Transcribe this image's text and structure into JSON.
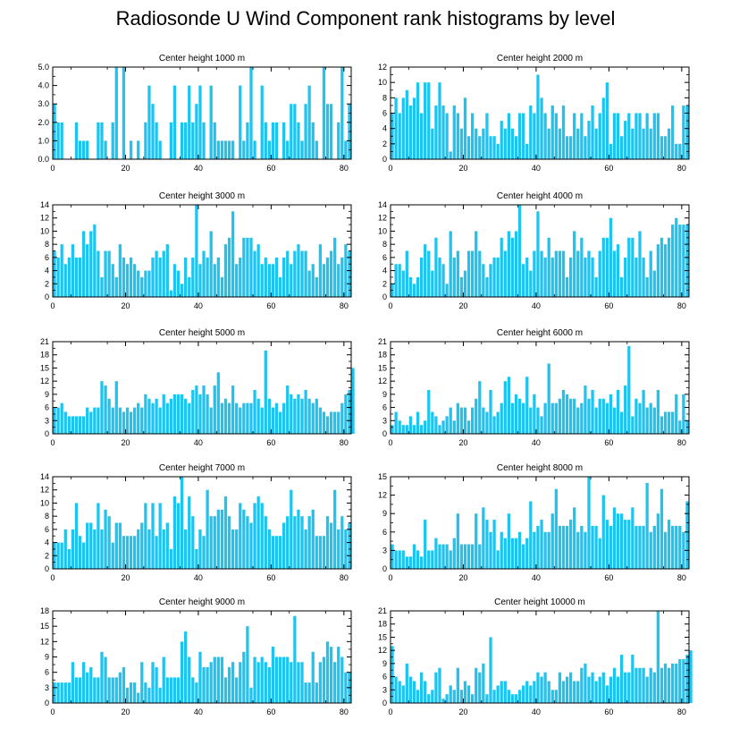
{
  "title": "Radiosonde U Wind Component rank histograms by level",
  "bar_color": "#1ec4f0",
  "chart_data": [
    {
      "type": "bar",
      "title": "Center height 1000 m",
      "xticks": [
        0,
        20,
        40,
        60,
        80
      ],
      "yticks": [
        "0.0",
        "1.0",
        "2.0",
        "3.0",
        "4.0",
        "5.0"
      ],
      "ylim": [
        0,
        5
      ],
      "xlim": [
        0,
        82
      ],
      "values": [
        3,
        2,
        2,
        0,
        0,
        0,
        2,
        1,
        1,
        1,
        0,
        0,
        2,
        2,
        1,
        0,
        2,
        5,
        0,
        5,
        0,
        1,
        0,
        1,
        0,
        2,
        4,
        3,
        2,
        1,
        0,
        0,
        2,
        4,
        0,
        2,
        2,
        4,
        2,
        3,
        4,
        2,
        0,
        4,
        2,
        1,
        1,
        1,
        1,
        1,
        0,
        4,
        1,
        2,
        5,
        1,
        0,
        4,
        2,
        1,
        2,
        2,
        0,
        2,
        1,
        3,
        3,
        2,
        1,
        3,
        4,
        2,
        1,
        0,
        5,
        3,
        3,
        0,
        2,
        5,
        1,
        3
      ]
    },
    {
      "type": "bar",
      "title": "Center height 2000 m",
      "xticks": [
        0,
        20,
        40,
        60,
        80
      ],
      "yticks": [
        "0",
        "2",
        "4",
        "6",
        "8",
        "10",
        "12"
      ],
      "ylim": [
        0,
        12
      ],
      "xlim": [
        0,
        82
      ],
      "values": [
        6,
        8,
        6,
        8,
        9,
        7,
        8,
        10,
        6,
        10,
        10,
        4,
        7,
        10,
        7,
        6,
        1,
        7,
        6,
        4,
        8,
        3,
        6,
        4,
        3,
        4,
        6,
        3,
        3,
        2,
        5,
        4,
        6,
        4,
        3,
        6,
        6,
        2,
        7,
        6,
        11,
        8,
        6,
        4,
        7,
        6,
        4,
        7,
        3,
        3,
        6,
        4,
        6,
        3,
        5,
        7,
        4,
        6,
        8,
        10,
        2,
        6,
        6,
        3,
        5,
        6,
        4,
        6,
        6,
        4,
        6,
        4,
        6,
        6,
        3,
        3,
        4,
        7,
        2,
        2,
        7,
        7
      ]
    },
    {
      "type": "bar",
      "title": "Center height 3000 m",
      "xticks": [
        0,
        20,
        40,
        60,
        80
      ],
      "yticks": [
        "0",
        "2",
        "4",
        "6",
        "8",
        "10",
        "12",
        "14"
      ],
      "ylim": [
        0,
        14
      ],
      "xlim": [
        0,
        82
      ],
      "values": [
        7,
        6,
        8,
        5,
        6,
        8,
        6,
        6,
        10,
        8,
        10,
        11,
        7,
        3,
        7,
        7,
        5,
        3,
        8,
        6,
        5,
        6,
        5,
        4,
        3,
        4,
        4,
        6,
        7,
        6,
        7,
        8,
        1,
        5,
        4,
        2,
        6,
        3,
        6,
        14,
        5,
        7,
        6,
        10,
        5,
        6,
        3,
        8,
        9,
        13,
        5,
        6,
        9,
        9,
        9,
        7,
        8,
        5,
        6,
        5,
        5,
        6,
        3,
        6,
        7,
        5,
        7,
        8,
        7,
        7,
        4,
        5,
        3,
        8,
        5,
        6,
        7,
        9,
        5,
        6,
        8,
        7
      ]
    },
    {
      "type": "bar",
      "title": "Center height 4000 m",
      "xticks": [
        0,
        20,
        40,
        60,
        80
      ],
      "yticks": [
        "0",
        "2",
        "4",
        "6",
        "8",
        "10",
        "12",
        "14"
      ],
      "ylim": [
        0,
        14
      ],
      "xlim": [
        0,
        82
      ],
      "values": [
        2,
        5,
        5,
        4,
        7,
        3,
        2,
        3,
        6,
        8,
        7,
        4,
        9,
        6,
        5,
        2,
        10,
        6,
        7,
        3,
        4,
        7,
        7,
        10,
        7,
        5,
        3,
        5,
        6,
        6,
        9,
        7,
        10,
        9,
        10,
        14,
        5,
        6,
        4,
        7,
        13,
        7,
        6,
        9,
        6,
        7,
        7,
        7,
        3,
        6,
        10,
        7,
        9,
        6,
        7,
        6,
        3,
        7,
        9,
        9,
        12,
        7,
        8,
        3,
        6,
        9,
        9,
        6,
        10,
        6,
        3,
        7,
        4,
        8,
        9,
        8,
        9,
        11,
        12,
        11,
        11,
        11
      ]
    },
    {
      "type": "bar",
      "title": "Center height 5000 m",
      "xticks": [
        0,
        20,
        40,
        60,
        80
      ],
      "yticks": [
        "0",
        "3",
        "6",
        "9",
        "12",
        "15",
        "18",
        "21"
      ],
      "ylim": [
        0,
        21
      ],
      "xlim": [
        0,
        82
      ],
      "values": [
        6,
        6,
        7,
        5,
        4,
        4,
        4,
        4,
        4,
        6,
        5,
        6,
        6,
        12,
        11,
        8,
        6,
        12,
        6,
        5,
        6,
        5,
        6,
        7,
        6,
        9,
        8,
        7,
        8,
        6,
        9,
        7,
        8,
        9,
        9,
        9,
        8,
        7,
        10,
        11,
        9,
        11,
        9,
        6,
        11,
        14,
        7,
        8,
        7,
        11,
        7,
        6,
        7,
        7,
        7,
        10,
        8,
        6,
        19,
        8,
        6,
        7,
        5,
        7,
        11,
        9,
        8,
        9,
        8,
        10,
        8,
        7,
        8,
        6,
        5,
        4,
        5,
        5,
        5,
        7,
        9,
        10,
        15
      ]
    },
    {
      "type": "bar",
      "title": "Center height 6000 m",
      "xticks": [
        0,
        20,
        40,
        60,
        80
      ],
      "yticks": [
        "0",
        "3",
        "6",
        "9",
        "12",
        "15",
        "18",
        "21"
      ],
      "ylim": [
        0,
        21
      ],
      "xlim": [
        0,
        82
      ],
      "values": [
        2,
        5,
        3,
        2,
        2,
        4,
        2,
        5,
        2,
        3,
        10,
        5,
        4,
        2,
        3,
        4,
        6,
        3,
        7,
        6,
        6,
        3,
        6,
        8,
        12,
        6,
        5,
        10,
        4,
        5,
        7,
        12,
        13,
        7,
        9,
        8,
        7,
        13,
        6,
        9,
        6,
        4,
        7,
        16,
        7,
        7,
        8,
        10,
        9,
        8,
        8,
        6,
        7,
        11,
        8,
        10,
        6,
        8,
        8,
        7,
        9,
        6,
        10,
        5,
        11,
        20,
        4,
        8,
        7,
        10,
        6,
        7,
        6,
        10,
        4,
        5,
        5,
        5,
        9,
        3,
        9,
        3
      ]
    },
    {
      "type": "bar",
      "title": "Center height 7000 m",
      "xticks": [
        0,
        20,
        40,
        60,
        80
      ],
      "yticks": [
        "0",
        "2",
        "4",
        "6",
        "8",
        "10",
        "12",
        "14"
      ],
      "ylim": [
        0,
        14
      ],
      "xlim": [
        0,
        82
      ],
      "values": [
        4,
        4,
        4,
        6,
        3,
        6,
        10,
        5,
        4,
        7,
        7,
        6,
        10,
        6,
        9,
        8,
        4,
        7,
        7,
        5,
        5,
        5,
        5,
        6,
        7,
        10,
        6,
        10,
        5,
        10,
        6,
        7,
        3,
        11,
        10,
        14,
        6,
        11,
        8,
        3,
        6,
        5,
        12,
        8,
        8,
        9,
        9,
        11,
        8,
        6,
        6,
        10,
        9,
        8,
        7,
        10,
        11,
        10,
        8,
        6,
        5,
        5,
        5,
        7,
        8,
        12,
        8,
        9,
        8,
        6,
        8,
        9,
        5,
        5,
        5,
        8,
        7,
        12,
        6,
        8,
        6,
        7
      ]
    },
    {
      "type": "bar",
      "title": "Center height 8000 m",
      "xticks": [
        0,
        20,
        40,
        60,
        80
      ],
      "yticks": [
        "0",
        "3",
        "6",
        "9",
        "12",
        "15"
      ],
      "ylim": [
        0,
        15
      ],
      "xlim": [
        0,
        82
      ],
      "values": [
        4,
        3,
        3,
        3,
        2,
        2,
        4,
        3,
        2,
        8,
        3,
        3,
        5,
        4,
        4,
        4,
        3,
        5,
        9,
        4,
        4,
        4,
        4,
        9,
        4,
        10,
        8,
        6,
        8,
        3,
        6,
        5,
        9,
        5,
        5,
        6,
        4,
        5,
        11,
        6,
        7,
        8,
        6,
        6,
        9,
        13,
        7,
        7,
        7,
        8,
        10,
        6,
        7,
        6,
        15,
        7,
        7,
        5,
        12,
        8,
        7,
        10,
        9,
        9,
        8,
        8,
        10,
        7,
        7,
        7,
        14,
        6,
        7,
        9,
        13,
        6,
        8,
        7,
        7,
        7,
        6,
        11
      ]
    },
    {
      "type": "bar",
      "title": "Center height 9000 m",
      "xticks": [
        0,
        20,
        40,
        60,
        80
      ],
      "yticks": [
        "0",
        "3",
        "6",
        "9",
        "12",
        "15",
        "18"
      ],
      "ylim": [
        0,
        18
      ],
      "xlim": [
        0,
        82
      ],
      "values": [
        4,
        4,
        4,
        4,
        4,
        8,
        5,
        5,
        8,
        6,
        7,
        5,
        5,
        10,
        9,
        5,
        5,
        5,
        6,
        7,
        3,
        4,
        4,
        2,
        8,
        4,
        3,
        8,
        7,
        3,
        9,
        5,
        5,
        5,
        5,
        12,
        14,
        9,
        5,
        4,
        10,
        7,
        7,
        8,
        9,
        9,
        9,
        5,
        7,
        8,
        5,
        8,
        10,
        15,
        3,
        9,
        8,
        9,
        8,
        7,
        11,
        9,
        9,
        9,
        9,
        8,
        17,
        8,
        8,
        4,
        4,
        10,
        4,
        8,
        9,
        12,
        11,
        8,
        11,
        9,
        6,
        6
      ]
    },
    {
      "type": "bar",
      "title": "Center height 10000 m",
      "xticks": [
        0,
        20,
        40,
        60,
        80
      ],
      "yticks": [
        "0",
        "3",
        "6",
        "9",
        "12",
        "15",
        "18",
        "21"
      ],
      "ylim": [
        0,
        21
      ],
      "xlim": [
        0,
        82
      ],
      "values": [
        13,
        6,
        5,
        4,
        9,
        6,
        5,
        3,
        7,
        5,
        2,
        3,
        7,
        8,
        1,
        2,
        4,
        3,
        8,
        3,
        5,
        4,
        2,
        8,
        7,
        9,
        2,
        15,
        3,
        4,
        5,
        5,
        3,
        2,
        2,
        3,
        4,
        5,
        4,
        5,
        7,
        6,
        7,
        5,
        3,
        3,
        7,
        5,
        6,
        7,
        5,
        5,
        8,
        9,
        6,
        7,
        5,
        6,
        7,
        4,
        6,
        8,
        6,
        11,
        7,
        7,
        11,
        8,
        8,
        8,
        6,
        8,
        7,
        21,
        8,
        9,
        8,
        9,
        9,
        10,
        10,
        11,
        12
      ]
    }
  ]
}
